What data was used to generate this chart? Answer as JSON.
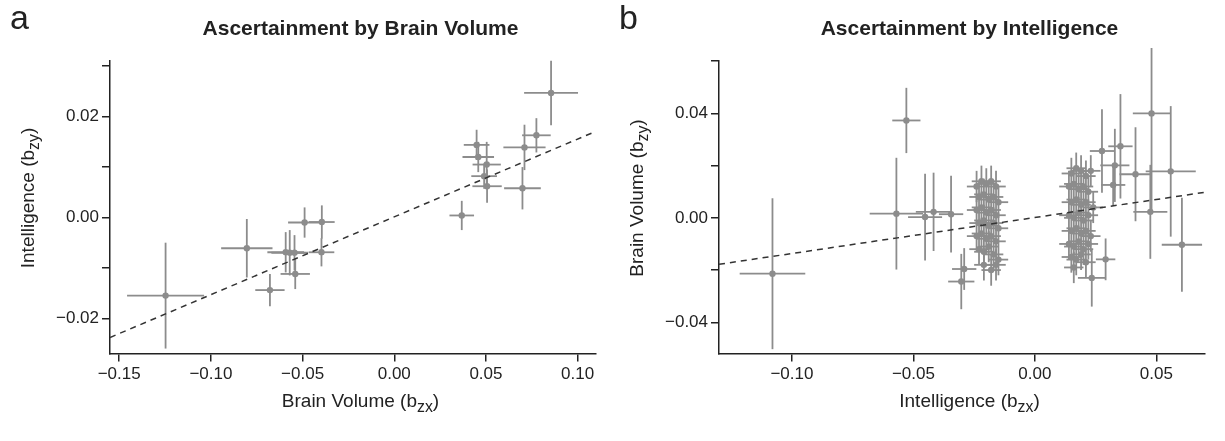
{
  "chart_data": [
    {
      "type": "scatter",
      "title": "Ascertainment by Brain Volume",
      "xlabel": "Brain Volume (b$_{zx}$)",
      "ylabel": "Intelligence (b$_{zy}$)",
      "annotations": [
        "a"
      ],
      "xlim": [
        -0.155,
        0.11
      ],
      "xticks": [
        {
          "value": -0.15,
          "label": "−0.15"
        },
        {
          "value": -0.1,
          "label": "−0.10"
        },
        {
          "value": -0.05,
          "label": "−0.05"
        },
        {
          "value": 0,
          "label": "0.00"
        },
        {
          "value": 0.05,
          "label": "0.05"
        },
        {
          "value": 0.1,
          "label": "0.10"
        }
      ],
      "ylim": [
        -0.027,
        0.031
      ],
      "yticks": [
        {
          "value": -0.02,
          "label": "−0.02"
        },
        {
          "value": -0.01,
          "label": null
        },
        {
          "value": 0,
          "label": "0.00"
        },
        {
          "value": 0.01,
          "label": null
        },
        {
          "value": 0.02,
          "label": "0.02"
        },
        {
          "value": 0.03,
          "label": null
        }
      ],
      "series": [
        {
          "marker": "circle",
          "color": "#8c8c8c",
          "x": [
            -0.1247,
            -0.0804,
            -0.0678,
            -0.0592,
            -0.057,
            -0.0544,
            -0.054,
            -0.0489,
            -0.0395,
            -0.0397,
            0.0368,
            0.0449,
            0.0458,
            0.0504,
            0.049,
            0.0506,
            0.0699,
            0.071,
            0.0775,
            0.0855
          ],
          "values": [
            -0.0155,
            -0.0061,
            -0.0144,
            -0.0069,
            -0.007,
            -0.007,
            -0.0112,
            -0.001,
            -0.0009,
            -0.0069,
            0.0004,
            0.0144,
            0.012,
            0.0105,
            0.0082,
            0.0062,
            0.0058,
            0.0139,
            0.0163,
            0.0247
          ],
          "xerrors": [
            0.021,
            0.014,
            0.008,
            0.01,
            0.01,
            0.006,
            0.008,
            0.009,
            0.007,
            0.007,
            0.0067,
            0.007,
            0.0086,
            0.0077,
            0.007,
            0.008,
            0.01,
            0.0115,
            0.0078,
            0.0147
          ],
          "errors": [
            0.0105,
            0.0058,
            0.0032,
            0.004,
            0.0045,
            0.0035,
            0.003,
            0.003,
            0.0033,
            0.0028,
            0.0029,
            0.003,
            0.003,
            0.0045,
            0.0025,
            0.0033,
            0.0042,
            0.0045,
            0.0034,
            0.0064
          ]
        },
        {
          "type": "line",
          "color": "#333333",
          "line_style": "dashed",
          "x": [
            -0.155,
            0.11
          ],
          "values": [
            -0.0238,
            0.0171
          ]
        }
      ]
    },
    {
      "type": "scatter",
      "title": "Ascertainment by Intelligence",
      "xlabel": "Intelligence (b$_{zx}$)",
      "ylabel": "Brain Volume (b$_{zy}$)",
      "annotations": [
        "b"
      ],
      "xlim": [
        -0.13,
        0.07
      ],
      "xticks": [
        {
          "value": -0.1,
          "label": "−0.10"
        },
        {
          "value": -0.05,
          "label": "−0.05"
        },
        {
          "value": 0,
          "label": "0.00"
        },
        {
          "value": 0.05,
          "label": "0.05"
        }
      ],
      "ylim": [
        -0.052,
        0.06
      ],
      "yticks": [
        {
          "value": -0.04,
          "label": "−0.04"
        },
        {
          "value": -0.02,
          "label": null
        },
        {
          "value": 0,
          "label": "0.00"
        },
        {
          "value": 0.02,
          "label": null
        },
        {
          "value": 0.04,
          "label": "0.04"
        },
        {
          "value": 0.06,
          "label": null
        }
      ],
      "series": [
        {
          "marker": "circle",
          "color": "#8c8c8c",
          "x": [
            -0.108,
            -0.0529,
            -0.057,
            -0.0452,
            -0.0417,
            -0.0345,
            -0.0303,
            -0.0291,
            0.0276,
            0.0352,
            0.0329,
            0.0322,
            0.0414,
            0.048,
            0.0559,
            0.0475,
            0.0605,
            0.0291,
            0.0234,
            -0.024,
            -0.022,
            -0.02,
            -0.018,
            -0.016,
            -0.023,
            -0.021,
            -0.019,
            -0.017,
            -0.015,
            -0.024,
            -0.022,
            -0.02,
            -0.018,
            -0.016,
            -0.023,
            -0.021,
            -0.019,
            -0.017,
            -0.015,
            -0.024,
            -0.022,
            -0.02,
            -0.018,
            -0.016,
            -0.023,
            -0.021,
            -0.019,
            -0.017,
            -0.016,
            -0.021,
            -0.018,
            -0.015,
            0.015,
            0.017,
            0.019,
            0.021,
            0.023,
            0.014,
            0.016,
            0.018,
            0.02,
            0.022,
            0.015,
            0.017,
            0.019,
            0.021,
            0.024,
            0.014,
            0.016,
            0.018,
            0.02,
            0.022,
            0.015,
            0.017,
            0.019,
            0.021,
            0.023,
            0.014,
            0.016,
            0.018,
            0.02,
            0.022,
            0.015,
            0.017,
            0.019,
            0.021,
            0.016
          ],
          "values": [
            -0.0214,
            0.0373,
            0.0016,
            0.0003,
            0.0023,
            0.0014,
            -0.0244,
            -0.0196,
            0.0256,
            0.0274,
            0.0201,
            0.0126,
            0.0167,
            0.04,
            0.0178,
            0.0023,
            -0.0103,
            -0.0159,
            -0.023,
            0.012,
            0.014,
            0.013,
            0.014,
            0.012,
            0.008,
            0.009,
            0.007,
            0.008,
            0.006,
            0.003,
            0.004,
            0.002,
            0.003,
            0.001,
            -0.002,
            -0.001,
            -0.003,
            -0.002,
            -0.004,
            -0.007,
            -0.006,
            -0.008,
            -0.007,
            -0.009,
            -0.012,
            -0.013,
            -0.011,
            -0.014,
            -0.018,
            -0.018,
            -0.02,
            -0.016,
            0.017,
            0.019,
            0.018,
            0.016,
            0.018,
            0.012,
            0.013,
            0.011,
            0.012,
            0.01,
            0.006,
            0.007,
            0.005,
            0.006,
            0.004,
            0.001,
            0,
            0.002,
            -0.001,
            0.001,
            -0.005,
            -0.004,
            -0.006,
            -0.005,
            -0.007,
            -0.01,
            -0.011,
            -0.009,
            -0.012,
            -0.01,
            -0.015,
            -0.016,
            -0.014,
            -0.017,
            -0.019
          ],
          "xerrors": [
            0.0135,
            0.0058,
            0.011,
            0.007,
            0.0073,
            0.005,
            0.0054,
            0.005,
            0.005,
            0.005,
            0.006,
            0.005,
            0.0066,
            0.0077,
            0.0103,
            0.007,
            0.0083,
            0.004,
            0.0057,
            0.004,
            0.004,
            0.004,
            0.004,
            0.004,
            0.004,
            0.004,
            0.004,
            0.004,
            0.004,
            0.004,
            0.004,
            0.004,
            0.004,
            0.004,
            0.004,
            0.004,
            0.004,
            0.004,
            0.004,
            0.004,
            0.004,
            0.004,
            0.004,
            0.004,
            0.004,
            0.004,
            0.004,
            0.004,
            0.004,
            0.004,
            0.004,
            0.004,
            0.004,
            0.004,
            0.004,
            0.004,
            0.004,
            0.004,
            0.004,
            0.004,
            0.004,
            0.004,
            0.004,
            0.004,
            0.004,
            0.004,
            0.004,
            0.004,
            0.004,
            0.004,
            0.004,
            0.004,
            0.004,
            0.004,
            0.004,
            0.004,
            0.004,
            0.004,
            0.004,
            0.004,
            0.004,
            0.004,
            0.004,
            0.004,
            0.004,
            0.004,
            0.004
          ],
          "errors": [
            0.0289,
            0.0125,
            0.0214,
            0.0166,
            0.015,
            0.0147,
            0.0106,
            0.008,
            0.016,
            0.02,
            0.014,
            0.008,
            0.018,
            0.037,
            0.025,
            0.018,
            0.018,
            0.008,
            0.011,
            0.006,
            0.006,
            0.006,
            0.006,
            0.006,
            0.006,
            0.006,
            0.006,
            0.006,
            0.006,
            0.006,
            0.006,
            0.006,
            0.006,
            0.006,
            0.006,
            0.006,
            0.006,
            0.006,
            0.006,
            0.006,
            0.006,
            0.006,
            0.006,
            0.006,
            0.006,
            0.006,
            0.006,
            0.006,
            0.006,
            0.006,
            0.006,
            0.006,
            0.006,
            0.006,
            0.006,
            0.006,
            0.006,
            0.006,
            0.006,
            0.006,
            0.006,
            0.006,
            0.006,
            0.006,
            0.006,
            0.006,
            0.006,
            0.006,
            0.006,
            0.006,
            0.006,
            0.006,
            0.006,
            0.006,
            0.006,
            0.006,
            0.006,
            0.006,
            0.006,
            0.006,
            0.006,
            0.006,
            0.006,
            0.006,
            0.006,
            0.006,
            0.006
          ]
        },
        {
          "type": "line",
          "color": "#333333",
          "line_style": "dashed",
          "x": [
            -0.13,
            0.07
          ],
          "values": [
            -0.0178,
            0.0098
          ]
        }
      ]
    }
  ]
}
